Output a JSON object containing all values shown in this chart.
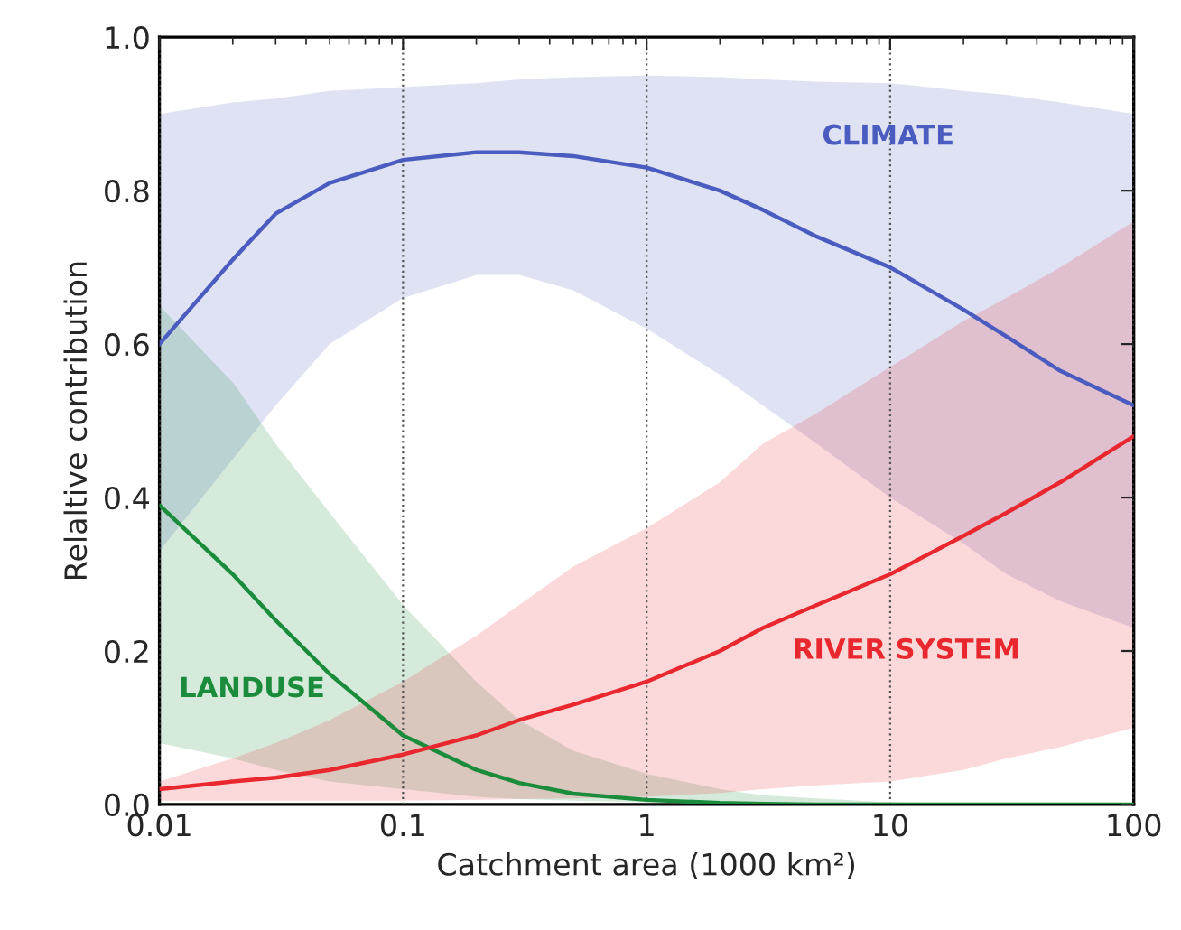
{
  "chart_data": {
    "type": "line",
    "xlabel": "Catchment area (1000 km²)",
    "ylabel": "Relaltive contribution",
    "log": "x",
    "xlim": [
      0.01,
      100
    ],
    "ylim": [
      0,
      1
    ],
    "xticks": [
      {
        "value": 0.01,
        "label": "0.01"
      },
      {
        "value": 0.1,
        "label": "0.1"
      },
      1,
      10,
      100
    ],
    "yticks": [
      {
        "value": 0,
        "label": "0.0"
      },
      0.2,
      0.4,
      0.6,
      0.8,
      {
        "value": 1,
        "label": "1.0"
      }
    ],
    "grid": "x",
    "legend": false,
    "series": [
      {
        "name": "CLIMATE",
        "color": "#4a5cbf",
        "x": [
          0.01,
          0.02,
          0.03,
          0.05,
          0.1,
          0.2,
          0.3,
          0.5,
          1,
          2,
          3,
          5,
          10,
          20,
          30,
          50,
          100
        ],
        "values": [
          0.6,
          0.71,
          0.77,
          0.81,
          0.84,
          0.85,
          0.85,
          0.845,
          0.83,
          0.8,
          0.775,
          0.74,
          0.7,
          0.645,
          0.61,
          0.565,
          0.52
        ],
        "lower": [
          0.33,
          0.45,
          0.52,
          0.6,
          0.66,
          0.69,
          0.69,
          0.67,
          0.62,
          0.56,
          0.52,
          0.47,
          0.4,
          0.34,
          0.3,
          0.265,
          0.23
        ],
        "upper": [
          0.9,
          0.915,
          0.92,
          0.93,
          0.935,
          0.94,
          0.945,
          0.948,
          0.95,
          0.948,
          0.945,
          0.942,
          0.94,
          0.93,
          0.925,
          0.915,
          0.9
        ]
      },
      {
        "name": "LANDUSE",
        "color": "#1a8c3c",
        "x": [
          0.01,
          0.02,
          0.03,
          0.05,
          0.1,
          0.2,
          0.3,
          0.5,
          1,
          2,
          3,
          5,
          10,
          20,
          30,
          50,
          100
        ],
        "values": [
          0.39,
          0.3,
          0.24,
          0.17,
          0.09,
          0.045,
          0.028,
          0.014,
          0.006,
          0.002,
          0.001,
          0,
          0,
          0,
          0,
          0,
          0
        ],
        "lower": [
          0.08,
          0.06,
          0.045,
          0.03,
          0.02,
          0.01,
          0.007,
          0.005,
          0.003,
          0.001,
          0,
          0,
          0,
          0,
          0,
          0,
          0
        ],
        "upper": [
          0.65,
          0.55,
          0.47,
          0.38,
          0.26,
          0.16,
          0.11,
          0.07,
          0.04,
          0.02,
          0.012,
          0.008,
          0.003,
          0.001,
          0,
          0,
          0
        ]
      },
      {
        "name": "RIVER SYSTEM",
        "color": "#e8282e",
        "x": [
          0.01,
          0.02,
          0.03,
          0.05,
          0.1,
          0.2,
          0.3,
          0.5,
          1,
          2,
          3,
          5,
          10,
          20,
          30,
          50,
          100
        ],
        "values": [
          0.02,
          0.03,
          0.035,
          0.045,
          0.065,
          0.09,
          0.11,
          0.13,
          0.16,
          0.2,
          0.23,
          0.26,
          0.3,
          0.35,
          0.38,
          0.42,
          0.48
        ],
        "lower": [
          0.005,
          0.005,
          0.005,
          0.005,
          0.005,
          0.006,
          0.007,
          0.008,
          0.01,
          0.015,
          0.02,
          0.025,
          0.03,
          0.045,
          0.06,
          0.075,
          0.1
        ],
        "upper": [
          0.03,
          0.06,
          0.08,
          0.11,
          0.16,
          0.22,
          0.26,
          0.31,
          0.36,
          0.42,
          0.47,
          0.51,
          0.57,
          0.63,
          0.66,
          0.7,
          0.76
        ]
      }
    ]
  }
}
